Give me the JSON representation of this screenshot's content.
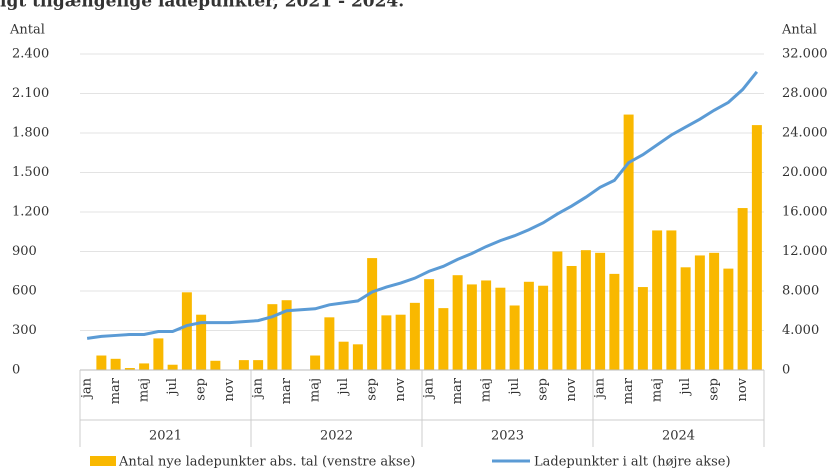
{
  "chart_data": {
    "type": "bar-line",
    "title": "igt tilgængelige ladepunkter, 2021 - 2024.",
    "y_label": "Antal",
    "y2_label": "Antal",
    "categories": [
      "jan",
      null,
      "mar",
      null,
      "maj",
      null,
      "jul",
      null,
      "sep",
      null,
      "nov",
      null,
      "jan",
      null,
      "mar",
      null,
      "maj",
      null,
      "jul",
      null,
      "sep",
      null,
      "nov",
      null,
      "jan",
      null,
      "mar",
      null,
      "maj",
      null,
      "jul",
      null,
      "sep",
      null,
      "nov",
      null,
      "jan",
      null,
      "mar",
      null,
      "maj",
      null,
      "jul",
      null,
      "sep",
      null,
      "nov",
      null
    ],
    "years": [
      "2021",
      "2022",
      "2023",
      "2024"
    ],
    "series": [
      {
        "name": "Antal nye ladepunkter abs. tal (venstre akse)",
        "color": "#f9b800",
        "axis": "y",
        "values": [
          0,
          110,
          85,
          15,
          50,
          240,
          40,
          590,
          420,
          70,
          0,
          75,
          75,
          500,
          530,
          0,
          110,
          400,
          215,
          195,
          850,
          415,
          420,
          510,
          690,
          470,
          720,
          650,
          680,
          625,
          490,
          670,
          640,
          900,
          790,
          910,
          890,
          730,
          1940,
          630,
          1060,
          1060,
          780,
          870,
          890,
          770,
          1230,
          1860
        ]
      },
      {
        "name": "Ladepunkter i alt (højre akse)",
        "color": "#5b9bd5",
        "axis": "y2",
        "values": [
          3200,
          3400,
          3500,
          3600,
          3600,
          3900,
          3900,
          4500,
          4800,
          4800,
          4800,
          4900,
          5000,
          5400,
          6000,
          6100,
          6200,
          6600,
          6800,
          7000,
          7900,
          8400,
          8800,
          9300,
          10000,
          10500,
          11200,
          11800,
          12500,
          13100,
          13600,
          14200,
          14900,
          15800,
          16600,
          17500,
          18500,
          19200,
          21000,
          21800,
          22800,
          23800,
          24600,
          25400,
          26300,
          27100,
          28400,
          30200
        ]
      }
    ],
    "ylim": [
      0,
      2400
    ],
    "yticks": [
      0,
      300,
      600,
      900,
      {
        "value": 1200,
        "label": "1.200"
      },
      {
        "value": 1500,
        "label": "1.500"
      },
      {
        "value": 1800,
        "label": "1.800"
      },
      {
        "value": 2100,
        "label": "2.100"
      },
      {
        "value": 2400,
        "label": "2.400"
      }
    ],
    "y2lim": [
      0,
      32000
    ],
    "y2ticks": [
      0,
      {
        "value": 4000,
        "label": "4.000"
      },
      {
        "value": 8000,
        "label": "8.000"
      },
      {
        "value": 12000,
        "label": "12.000"
      },
      {
        "value": 16000,
        "label": "16.000"
      },
      {
        "value": 20000,
        "label": "20.000"
      },
      {
        "value": 24000,
        "label": "24.000"
      },
      {
        "value": 28000,
        "label": "28.000"
      },
      {
        "value": 32000,
        "label": "32.000"
      }
    ],
    "grid": true,
    "legend": "bottom"
  }
}
